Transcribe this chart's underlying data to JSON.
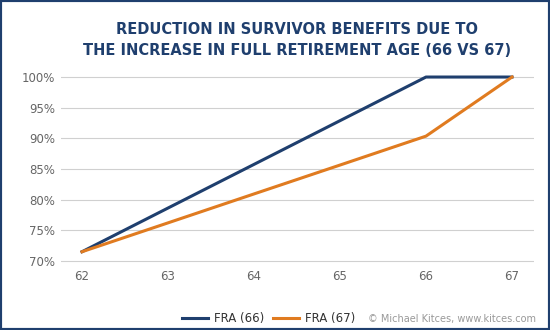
{
  "title_line1": "REDUCTION IN SURVIVOR BENEFITS DUE TO",
  "title_line2": "THE INCREASE IN FULL RETIREMENT AGE (66 VS 67)",
  "x_values_66": [
    62,
    63,
    64,
    65,
    66,
    67
  ],
  "fra66_y": [
    0.715,
    0.7863,
    0.8575,
    0.9288,
    1.0,
    1.0
  ],
  "x_values_67": [
    62,
    63,
    64,
    65,
    66,
    67
  ],
  "fra67_y": [
    0.715,
    0.7621,
    0.8093,
    0.8564,
    0.9036,
    1.0
  ],
  "fra66_color": "#1f3f6e",
  "fra67_color": "#e07b20",
  "line_width": 2.2,
  "ylim": [
    0.695,
    1.018
  ],
  "xlim": [
    61.75,
    67.25
  ],
  "yticks": [
    0.7,
    0.75,
    0.8,
    0.85,
    0.9,
    0.95,
    1.0
  ],
  "xticks": [
    62,
    63,
    64,
    65,
    66,
    67
  ],
  "legend_labels": [
    "FRA (66)",
    "FRA (67)"
  ],
  "watermark_plain": "© Michael Kitces, ",
  "watermark_link": "www.kitces.com",
  "watermark_color": "#999999",
  "watermark_link_color": "#3366cc",
  "bg_color": "#ffffff",
  "border_color": "#1f3f6e",
  "grid_color": "#d0d0d0",
  "title_color": "#1f3f6e",
  "title_fontsize": 10.5,
  "tick_fontsize": 8.5,
  "legend_fontsize": 8.5,
  "tick_color": "#666666"
}
